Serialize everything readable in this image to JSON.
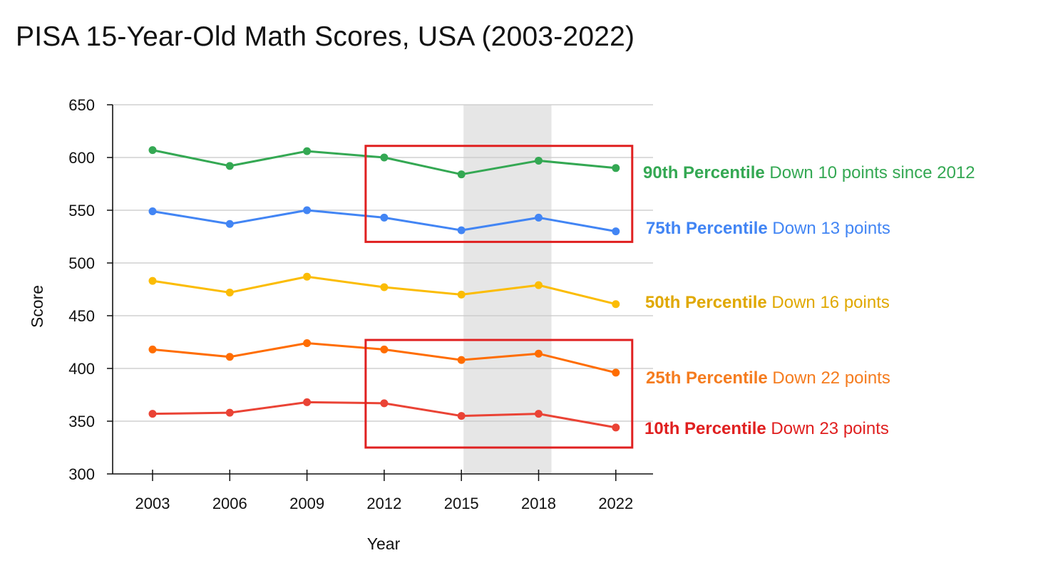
{
  "title": "PISA 15-Year-Old Math Scores, USA (2003-2022)",
  "chart_data": {
    "type": "line",
    "title": "PISA 15-Year-Old Math Scores, USA (2003-2022)",
    "xlabel": "Year",
    "ylabel": "Score",
    "categories": [
      "2003",
      "2006",
      "2009",
      "2012",
      "2015",
      "2018",
      "2022"
    ],
    "ylim": [
      300,
      650
    ],
    "yticks": [
      300,
      350,
      400,
      450,
      500,
      550,
      600,
      650
    ],
    "grid": "horizontal",
    "series": [
      {
        "name": "90th Percentile",
        "values": [
          607,
          592,
          606,
          600,
          584,
          597,
          590
        ],
        "color": "#34a853"
      },
      {
        "name": "75th Percentile",
        "values": [
          549,
          537,
          550,
          543,
          531,
          543,
          530
        ],
        "color": "#4285f4"
      },
      {
        "name": "50th Percentile",
        "values": [
          483,
          472,
          487,
          477,
          470,
          479,
          461
        ],
        "color": "#fbbc04"
      },
      {
        "name": "25th Percentile",
        "values": [
          418,
          411,
          424,
          418,
          408,
          414,
          396
        ],
        "color": "#ff6d01"
      },
      {
        "name": "10th Percentile",
        "values": [
          357,
          358,
          368,
          367,
          355,
          357,
          344
        ],
        "color": "#ea4335"
      }
    ],
    "highlight_band": {
      "from": "2015",
      "to": "2018",
      "color": "#e6e6e6"
    },
    "highlight_boxes": [
      {
        "from": "2012",
        "to": "2022",
        "ymin": 520,
        "ymax": 611,
        "color": "#e02020"
      },
      {
        "from": "2012",
        "to": "2022",
        "ymin": 325,
        "ymax": 427,
        "color": "#e02020"
      }
    ],
    "annotations": [
      {
        "label": "90th Percentile",
        "text": "Down 10 points since 2012",
        "color": "#34a853"
      },
      {
        "label": "75th Percentile",
        "text": "Down 13 points",
        "color": "#4285f4"
      },
      {
        "label": "50th Percentile",
        "text": "Down 16 points",
        "color": "#e0a800"
      },
      {
        "label": "25th Percentile",
        "text": "Down 22 points",
        "color": "#f57c1f"
      },
      {
        "label": "10th Percentile",
        "text": "Down 23 points",
        "color": "#e02020"
      }
    ]
  }
}
